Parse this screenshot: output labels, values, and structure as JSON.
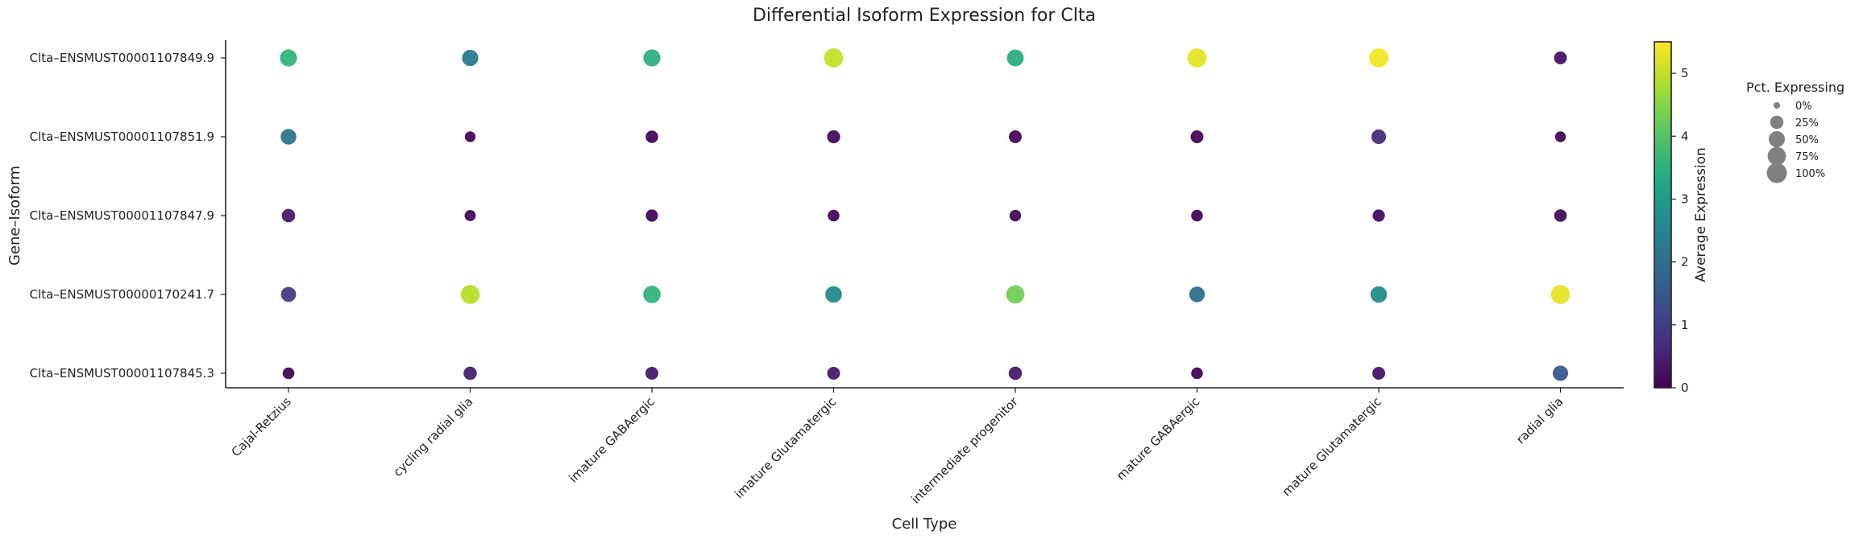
{
  "chart_data": {
    "type": "scatter",
    "subtype": "dot-plot",
    "title": "Differential Isoform Expression for Clta",
    "xlabel": "Cell Type",
    "ylabel": "Gene–Isoform",
    "categories": [
      "Cajal-Retzius",
      "cycling radial glia",
      "imature GABAergic",
      "imature Glutamatergic",
      "intermediate progenitor",
      "mature GABAergic",
      "mature Glutamatergic",
      "radial glia"
    ],
    "rows": [
      "Clta–ENSMUST00001107849.9",
      "Clta–ENSMUST00001107851.9",
      "Clta–ENSMUST00001107847.9",
      "Clta–ENSMUST00000170241.7",
      "Clta–ENSMUST00001107845.3"
    ],
    "avg_expression": [
      [
        3.6,
        2.3,
        3.5,
        5.0,
        3.4,
        5.3,
        5.4,
        0.3
      ],
      [
        2.1,
        0.1,
        0.1,
        0.2,
        0.1,
        0.1,
        0.7,
        0.1
      ],
      [
        0.4,
        0.1,
        0.1,
        0.1,
        0.1,
        0.1,
        0.2,
        0.2
      ],
      [
        1.0,
        4.9,
        3.6,
        2.6,
        4.3,
        2.0,
        2.7,
        5.3
      ],
      [
        0.1,
        0.5,
        0.4,
        0.4,
        0.4,
        0.1,
        0.3,
        1.5
      ]
    ],
    "pct_expressing": [
      [
        60,
        52,
        60,
        85,
        58,
        85,
        85,
        22
      ],
      [
        46,
        10,
        20,
        24,
        22,
        22,
        36,
        10
      ],
      [
        26,
        12,
        18,
        15,
        14,
        15,
        18,
        20
      ],
      [
        40,
        85,
        65,
        55,
        75,
        45,
        55,
        85
      ],
      [
        15,
        25,
        22,
        22,
        25,
        15,
        22,
        42
      ]
    ],
    "colorbar": {
      "label": "Average Expression",
      "range": [
        0,
        5.5
      ],
      "ticks": [
        0,
        1,
        2,
        3,
        4,
        5
      ],
      "colormap": "viridis"
    },
    "size_legend": {
      "title": "Pct. Expressing",
      "entries": [
        {
          "label": "0%",
          "value": 0
        },
        {
          "label": "25%",
          "value": 25
        },
        {
          "label": "50%",
          "value": 50
        },
        {
          "label": "75%",
          "value": 75
        },
        {
          "label": "100%",
          "value": 100
        }
      ]
    }
  },
  "colors": {
    "axis": "#222222",
    "legend_marker": "#808080",
    "viridis": [
      "#440154",
      "#482878",
      "#3e4989",
      "#31688e",
      "#26828e",
      "#1f9e89",
      "#35b779",
      "#6ece58",
      "#b5de2b",
      "#fde725"
    ]
  }
}
